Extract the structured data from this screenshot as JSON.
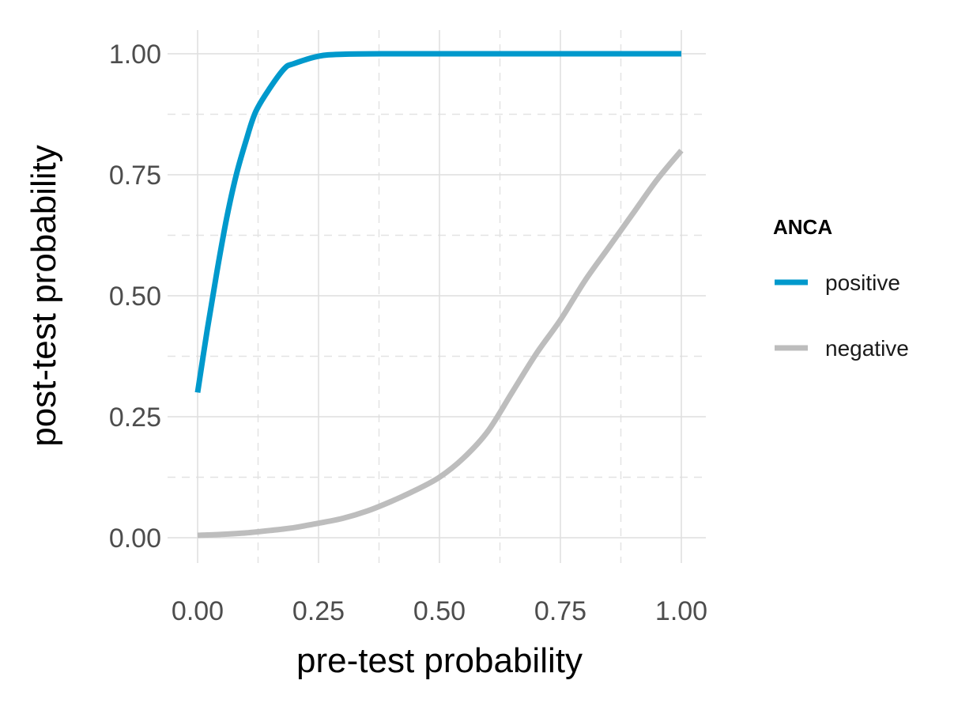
{
  "chart_data": {
    "type": "line",
    "xlabel": "pre-test probability",
    "ylabel": "post-test probability",
    "xlim": [
      0,
      1
    ],
    "ylim": [
      0,
      1
    ],
    "x_ticks": [
      "0.00",
      "0.25",
      "0.50",
      "0.75",
      "1.00"
    ],
    "y_ticks": [
      "0.00",
      "0.25",
      "0.50",
      "0.75",
      "1.00"
    ],
    "grid": true,
    "legend": {
      "title": "ANCA",
      "position": "right"
    },
    "series": [
      {
        "name": "positive",
        "color": "#0099cc",
        "x": [
          0.0,
          0.02,
          0.04,
          0.06,
          0.08,
          0.1,
          0.12,
          0.15,
          0.18,
          0.2,
          0.25,
          0.3,
          0.4,
          0.5,
          0.6,
          0.7,
          0.8,
          0.9,
          1.0
        ],
        "y": [
          0.3,
          0.43,
          0.55,
          0.66,
          0.75,
          0.82,
          0.88,
          0.93,
          0.97,
          0.98,
          0.995,
          0.999,
          1.0,
          1.0,
          1.0,
          1.0,
          1.0,
          1.0,
          1.0
        ]
      },
      {
        "name": "negative",
        "color": "#bdbdbd",
        "x": [
          0.0,
          0.05,
          0.1,
          0.15,
          0.2,
          0.25,
          0.3,
          0.35,
          0.4,
          0.45,
          0.5,
          0.55,
          0.6,
          0.65,
          0.7,
          0.75,
          0.8,
          0.85,
          0.9,
          0.95,
          1.0
        ],
        "y": [
          0.005,
          0.007,
          0.01,
          0.015,
          0.021,
          0.03,
          0.04,
          0.055,
          0.075,
          0.098,
          0.125,
          0.165,
          0.22,
          0.3,
          0.38,
          0.45,
          0.53,
          0.6,
          0.67,
          0.74,
          0.8
        ]
      }
    ]
  }
}
